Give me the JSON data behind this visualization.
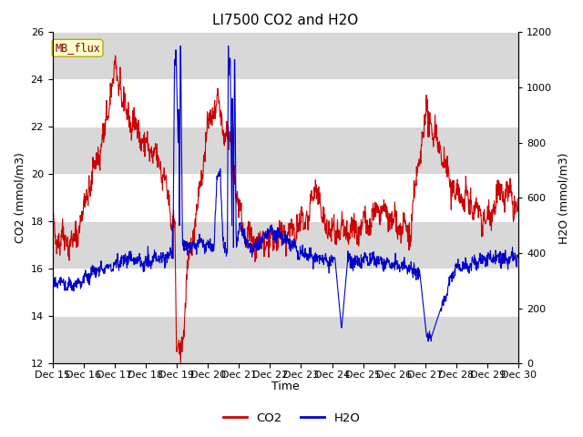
{
  "title": "LI7500 CO2 and H2O",
  "xlabel": "Time",
  "ylabel_left": "CO2 (mmol/m3)",
  "ylabel_right": "H2O (mmol/m3)",
  "ylim_left": [
    12,
    26
  ],
  "ylim_right": [
    0,
    1200
  ],
  "yticks_left": [
    12,
    14,
    16,
    18,
    20,
    22,
    24,
    26
  ],
  "yticks_right": [
    0,
    200,
    400,
    600,
    800,
    1000,
    1200
  ],
  "date_start": 15,
  "date_end": 30,
  "color_co2": "#cc0000",
  "color_h2o": "#0000cc",
  "bg_band_color": "#d8d8d8",
  "label_box_text": "MB_flux",
  "label_box_facecolor": "#ffffcc",
  "label_box_edgecolor": "#bbaa00",
  "legend_co2": "CO2",
  "legend_h2o": "H2O",
  "title_fontsize": 11,
  "axis_fontsize": 9,
  "tick_fontsize": 8
}
